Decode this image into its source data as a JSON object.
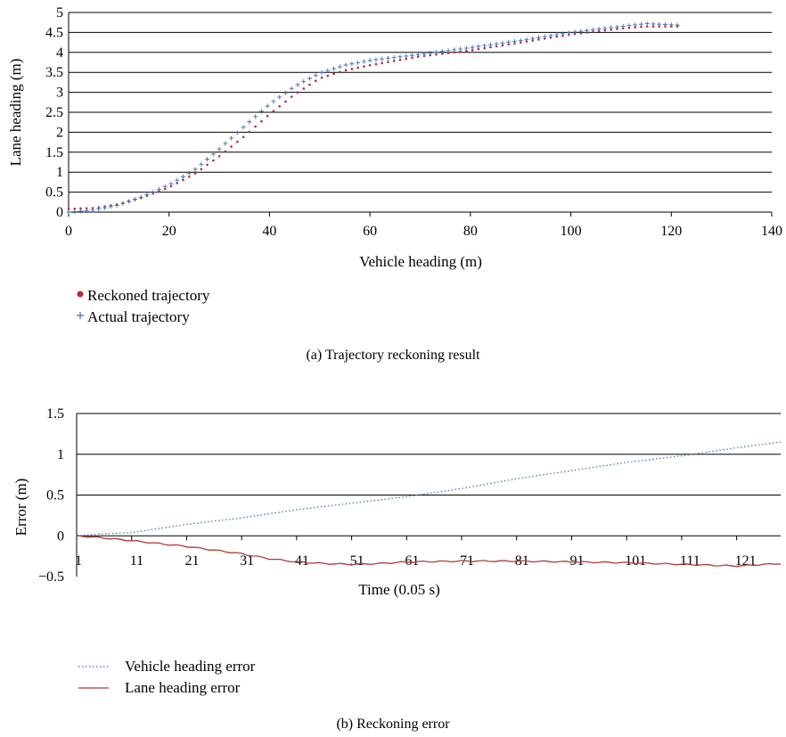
{
  "chart_data": [
    {
      "type": "scatter",
      "xlabel": "Vehicle heading (m)",
      "ylabel": "Lane heading (m)",
      "xlim": [
        0,
        140
      ],
      "ylim": [
        0,
        5
      ],
      "x_ticks": [
        "0",
        "20",
        "40",
        "60",
        "80",
        "100",
        "120",
        "140"
      ],
      "y_ticks": [
        "0",
        "0.5",
        "1",
        "1.5",
        "2",
        "2.5",
        "3",
        "3.5",
        "4",
        "4.5",
        "5"
      ],
      "grid": "horizontal",
      "legend_position": "bottom-left",
      "series": [
        {
          "name": "Reckoned trajectory",
          "color": "#c0282e",
          "marker": "dot",
          "points": [
            [
              0,
              0.08
            ],
            [
              5,
              0.1
            ],
            [
              10,
              0.2
            ],
            [
              15,
              0.38
            ],
            [
              20,
              0.62
            ],
            [
              25,
              0.95
            ],
            [
              30,
              1.4
            ],
            [
              35,
              1.9
            ],
            [
              40,
              2.45
            ],
            [
              45,
              2.95
            ],
            [
              50,
              3.35
            ],
            [
              55,
              3.55
            ],
            [
              60,
              3.68
            ],
            [
              70,
              3.9
            ],
            [
              80,
              4.05
            ],
            [
              90,
              4.25
            ],
            [
              100,
              4.45
            ],
            [
              110,
              4.6
            ],
            [
              115,
              4.65
            ],
            [
              122,
              4.65
            ]
          ]
        },
        {
          "name": "Actual trajectory",
          "color": "#3f6fb5",
          "marker": "plus",
          "points": [
            [
              0,
              0.0
            ],
            [
              5,
              0.05
            ],
            [
              10,
              0.18
            ],
            [
              15,
              0.4
            ],
            [
              20,
              0.68
            ],
            [
              25,
              1.05
            ],
            [
              30,
              1.58
            ],
            [
              35,
              2.15
            ],
            [
              40,
              2.7
            ],
            [
              45,
              3.15
            ],
            [
              50,
              3.48
            ],
            [
              55,
              3.68
            ],
            [
              60,
              3.8
            ],
            [
              70,
              3.95
            ],
            [
              80,
              4.12
            ],
            [
              90,
              4.3
            ],
            [
              100,
              4.5
            ],
            [
              110,
              4.65
            ],
            [
              115,
              4.72
            ],
            [
              122,
              4.68
            ]
          ]
        }
      ],
      "caption": "(a)  Trajectory reckoning result"
    },
    {
      "type": "line",
      "xlabel": "Time (0.05 s)",
      "ylabel": "Error (m)",
      "ylim": [
        -0.5,
        1.5
      ],
      "x_categories_range": [
        1,
        129
      ],
      "x_ticks": [
        "1",
        "11",
        "21",
        "31",
        "41",
        "51",
        "61",
        "71",
        "81",
        "91",
        "101",
        "111",
        "121"
      ],
      "y_ticks": [
        "−0.5",
        "0",
        "0.5",
        "1",
        "1.5"
      ],
      "grid": "horizontal",
      "legend_position": "bottom-left",
      "series": [
        {
          "name": "Vehicle heading error",
          "color": "#3f6fb5",
          "style": "dotted",
          "points": [
            [
              1,
              0
            ],
            [
              5,
              0.02
            ],
            [
              11,
              0.04
            ],
            [
              21,
              0.14
            ],
            [
              31,
              0.22
            ],
            [
              41,
              0.32
            ],
            [
              51,
              0.4
            ],
            [
              61,
              0.48
            ],
            [
              71,
              0.58
            ],
            [
              81,
              0.7
            ],
            [
              91,
              0.8
            ],
            [
              101,
              0.9
            ],
            [
              111,
              0.98
            ],
            [
              121,
              1.08
            ],
            [
              129,
              1.15
            ]
          ]
        },
        {
          "name": "Lane heading error",
          "color": "#b03a3a",
          "style": "solid",
          "points": [
            [
              1,
              0
            ],
            [
              5,
              -0.02
            ],
            [
              11,
              -0.06
            ],
            [
              21,
              -0.13
            ],
            [
              31,
              -0.22
            ],
            [
              36,
              -0.28
            ],
            [
              41,
              -0.32
            ],
            [
              46,
              -0.34
            ],
            [
              51,
              -0.35
            ],
            [
              56,
              -0.34
            ],
            [
              61,
              -0.32
            ],
            [
              71,
              -0.31
            ],
            [
              81,
              -0.31
            ],
            [
              91,
              -0.32
            ],
            [
              101,
              -0.33
            ],
            [
              111,
              -0.35
            ],
            [
              121,
              -0.37
            ],
            [
              129,
              -0.34
            ]
          ]
        }
      ],
      "caption": "(b)  Reckoning error"
    }
  ]
}
